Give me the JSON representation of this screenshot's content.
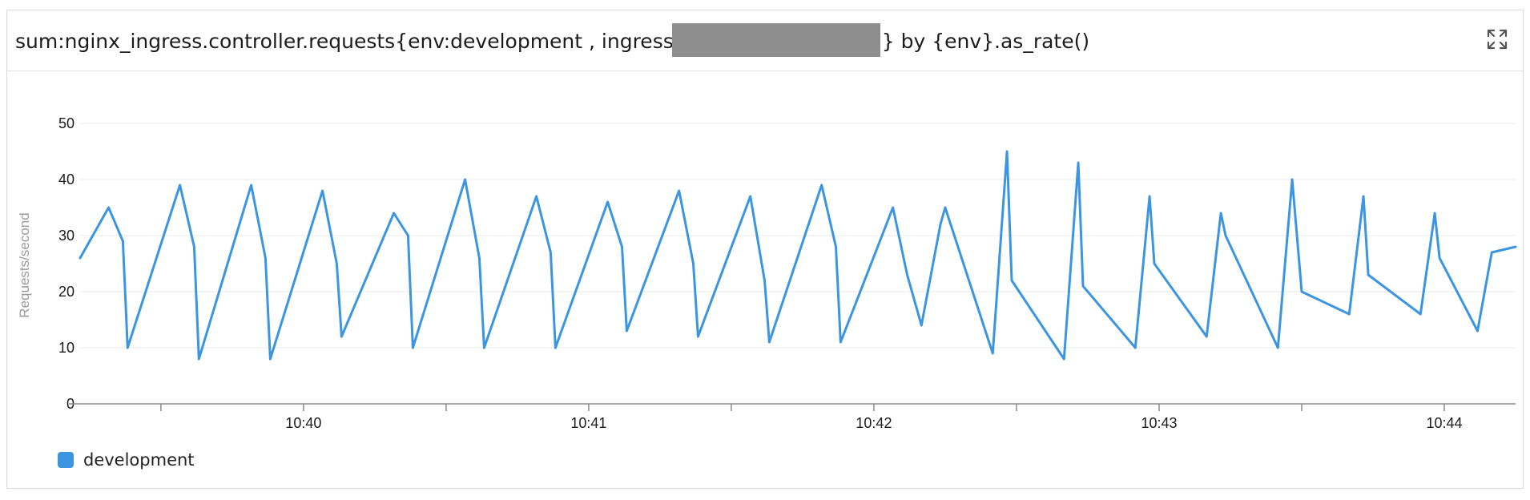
{
  "widget": {
    "title_part1": "sum:nginx_ingress.controller.requests{env:development , ingress",
    "title_part2": "} by {env}.as_rate()",
    "expand_icon": "expand-icon"
  },
  "colors": {
    "series": "#3b95e0",
    "grid": "#e8e8e8",
    "axis": "#8a8a8a"
  },
  "chart_data": {
    "type": "line",
    "title": "sum:nginx_ingress.controller.requests{env:development , ingress} by {env}.as_rate()",
    "ylabel": "Requests/second",
    "xlabel": "",
    "ylim": [
      0,
      50
    ],
    "yticks": [
      0,
      10,
      20,
      30,
      40,
      50
    ],
    "xlim": [
      "10:39:13",
      "10:44:15"
    ],
    "xticks": [
      "10:40",
      "10:41",
      "10:42",
      "10:43",
      "10:44"
    ],
    "grid": true,
    "legend_position": "bottom-left",
    "series": [
      {
        "name": "development",
        "color": "#3b95e0",
        "x": [
          "10:39:13",
          "10:39:19",
          "10:39:22",
          "10:39:23",
          "10:39:34",
          "10:39:37",
          "10:39:38",
          "10:39:49",
          "10:39:52",
          "10:39:53",
          "10:40:04",
          "10:40:07",
          "10:40:08",
          "10:40:19",
          "10:40:22",
          "10:40:23",
          "10:40:34",
          "10:40:37",
          "10:40:38",
          "10:40:49",
          "10:40:52",
          "10:40:53",
          "10:41:04",
          "10:41:07",
          "10:41:08",
          "10:41:19",
          "10:41:22",
          "10:41:23",
          "10:41:34",
          "10:41:37",
          "10:41:38",
          "10:41:49",
          "10:41:52",
          "10:41:53",
          "10:42:04",
          "10:42:07",
          "10:42:10",
          "10:42:14",
          "10:42:15",
          "10:42:25",
          "10:42:28",
          "10:42:29",
          "10:42:40",
          "10:42:43",
          "10:42:44",
          "10:42:55",
          "10:42:58",
          "10:42:59",
          "10:43:10",
          "10:43:13",
          "10:43:14",
          "10:43:25",
          "10:43:28",
          "10:43:30",
          "10:43:40",
          "10:43:43",
          "10:43:44",
          "10:43:55",
          "10:43:58",
          "10:43:59",
          "10:44:07",
          "10:44:10",
          "10:44:15"
        ],
        "values": [
          26,
          35,
          29,
          10,
          39,
          28,
          8,
          39,
          26,
          8,
          38,
          25,
          12,
          34,
          30,
          10,
          40,
          26,
          10,
          37,
          27,
          10,
          36,
          28,
          13,
          38,
          25,
          12,
          37,
          22,
          11,
          39,
          28,
          11,
          35,
          23,
          14,
          32,
          35,
          9,
          45,
          22,
          8,
          43,
          21,
          10,
          37,
          25,
          12,
          34,
          30,
          10,
          40,
          20,
          16,
          37,
          23,
          16,
          34,
          26,
          13,
          27,
          28
        ]
      }
    ]
  }
}
